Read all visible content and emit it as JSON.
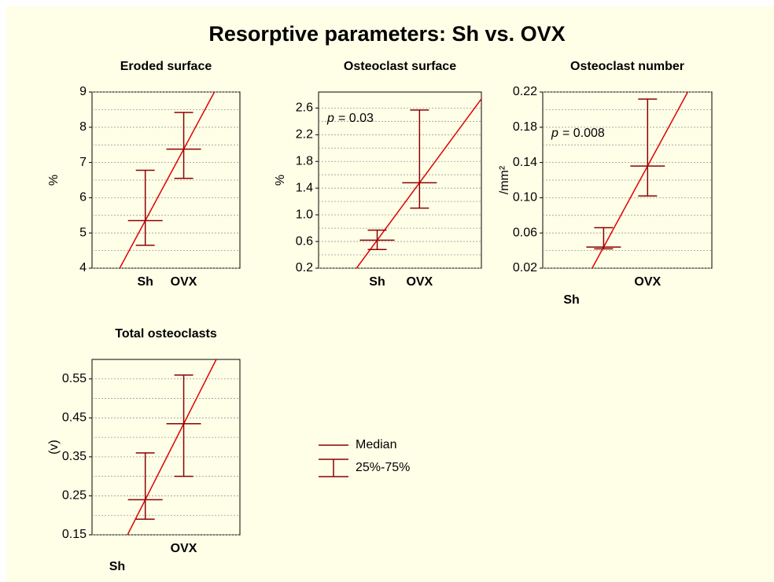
{
  "title": "Resorptive parameters: Sh vs. OVX",
  "legend": [
    "Median",
    "25%-75%"
  ],
  "chart_data": [
    {
      "type": "median-iqr",
      "title": "Eroded surface",
      "y_label": "%",
      "categories": [
        "Sh",
        "OVX"
      ],
      "median": [
        5.35,
        7.38
      ],
      "q1": [
        4.65,
        6.55
      ],
      "q3": [
        6.78,
        8.42
      ],
      "ylim": [
        4,
        9
      ],
      "yticks": [
        4,
        5,
        6,
        7,
        8,
        9
      ],
      "grid": true,
      "color": "#8b0000",
      "fit_color": "#e00000"
    },
    {
      "type": "median-iqr",
      "title": "Osteoclast surface",
      "y_label": "%",
      "categories": [
        "Sh",
        "OVX"
      ],
      "median": [
        0.62,
        1.48
      ],
      "q1": [
        0.48,
        1.1
      ],
      "q3": [
        0.77,
        2.57
      ],
      "ylim": [
        0.2,
        2.84
      ],
      "yticks": [
        0.2,
        0.6,
        {
          "value": 1,
          "label": "1.0"
        },
        1.4,
        1.8,
        2.2,
        2.6
      ],
      "grid": true,
      "annotation": {
        "symbol": "p",
        "text": "= 0.03"
      },
      "color": "#8b0000",
      "fit_color": "#e00000"
    },
    {
      "type": "median-iqr",
      "title": "Osteoclast number",
      "y_label": "/mm²",
      "categories": [
        "Sh",
        "OVX"
      ],
      "median": [
        0.044,
        0.136
      ],
      "q1": [
        0.042,
        0.102
      ],
      "q3": [
        0.066,
        0.212
      ],
      "ylim": [
        0.02,
        0.22
      ],
      "yticks": [
        0.02,
        0.06,
        {
          "value": 0.1,
          "label": "0.10"
        },
        0.14,
        0.18,
        0.22
      ],
      "grid": true,
      "annotation": {
        "symbol": "p",
        "text": "= 0.008"
      },
      "color": "#8b0000",
      "fit_color": "#e00000"
    },
    {
      "type": "median-iqr",
      "title": "Total osteoclasts",
      "y_label": "(v)",
      "categories": [
        "Sh",
        "OVX"
      ],
      "median": [
        0.24,
        0.435
      ],
      "q1": [
        0.19,
        0.3
      ],
      "q3": [
        0.36,
        0.56
      ],
      "ylim": [
        0.15,
        0.6
      ],
      "yticks": [
        0.15,
        0.25,
        0.35,
        0.45,
        0.55
      ],
      "grid": true,
      "color": "#8b0000",
      "fit_color": "#e00000"
    }
  ]
}
